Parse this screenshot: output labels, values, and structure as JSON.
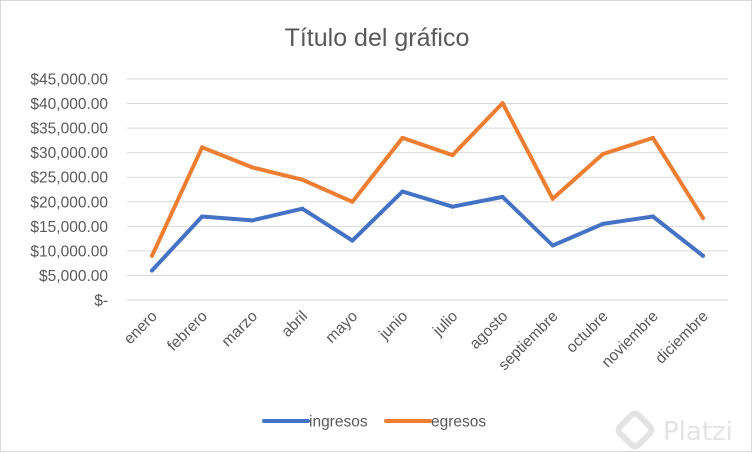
{
  "chart_data": {
    "type": "line",
    "title": "Título del gráfico",
    "categories": [
      "enero",
      "febrero",
      "marzo",
      "abril",
      "mayo",
      "junio",
      "julio",
      "agosto",
      "septiembre",
      "octubre",
      "noviembre",
      "diciembre"
    ],
    "series": [
      {
        "name": "ingresos",
        "color": "#4472c4",
        "values": [
          6000,
          17000,
          16200,
          18600,
          12100,
          22100,
          19000,
          21000,
          11100,
          15500,
          17000,
          9000
        ]
      },
      {
        "name": "egresos",
        "color": "#ed7d31",
        "values": [
          9000,
          31100,
          27000,
          24500,
          20000,
          33000,
          29500,
          40100,
          20600,
          29700,
          33000,
          16700
        ]
      }
    ],
    "ylim": [
      0,
      45000
    ],
    "yticks": [
      0,
      5000,
      10000,
      15000,
      20000,
      25000,
      30000,
      35000,
      40000,
      45000
    ],
    "ytick_labels": [
      "$-",
      "$5,000.00",
      "$10,000.00",
      "$15,000.00",
      "$20,000.00",
      "$25,000.00",
      "$30,000.00",
      "$35,000.00",
      "$40,000.00",
      "$45,000.00"
    ],
    "grid": true,
    "legend_position": "bottom"
  },
  "watermark": {
    "text": "Platzi",
    "icon": "platzi-logo-icon"
  }
}
